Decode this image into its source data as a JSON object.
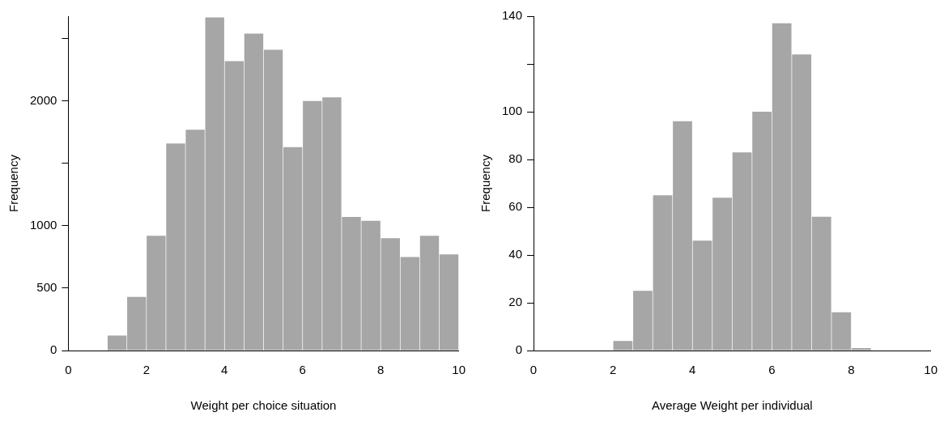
{
  "chart_data": [
    {
      "type": "histogram",
      "xlabel": "Weight per choice situation",
      "ylabel": "Frequency",
      "color": "#a6a6a6",
      "grid": false,
      "legend": false,
      "bins": [
        1,
        1.5,
        2,
        2.5,
        3,
        3.5,
        4,
        4.5,
        5,
        5.5,
        6,
        6.5,
        7,
        7.5,
        8,
        8.5,
        9,
        9.5,
        10
      ],
      "values": [
        120,
        430,
        920,
        1660,
        1770,
        2670,
        2320,
        2540,
        2410,
        1630,
        2000,
        2030,
        1070,
        1040,
        900,
        750,
        920,
        770
      ],
      "xlim": [
        0,
        10
      ],
      "xticks": [
        0,
        2,
        4,
        6,
        8,
        10
      ],
      "ylim": [
        0,
        2680
      ],
      "yticks": [
        0,
        500,
        1000,
        {
          "value": 1500,
          "label": null
        },
        2000,
        {
          "value": 2500,
          "label": null
        }
      ]
    },
    {
      "type": "histogram",
      "xlabel": "Average Weight per individual",
      "ylabel": "Frequency",
      "color": "#a6a6a6",
      "grid": false,
      "legend": false,
      "bins": [
        2,
        2.5,
        3,
        3.5,
        4,
        4.5,
        5,
        5.5,
        6,
        6.5,
        7,
        7.5,
        8,
        8.5
      ],
      "values": [
        4,
        25,
        65,
        96,
        46,
        64,
        83,
        100,
        137,
        124,
        56,
        16,
        1
      ],
      "xlim": [
        0,
        10
      ],
      "xticks": [
        0,
        2,
        4,
        6,
        8,
        10
      ],
      "ylim": [
        0,
        140
      ],
      "yticks": [
        0,
        20,
        40,
        60,
        80,
        100,
        {
          "value": 120,
          "label": null
        },
        140
      ]
    }
  ]
}
